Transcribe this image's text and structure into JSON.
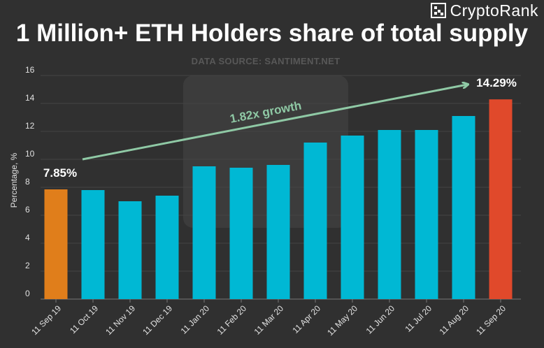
{
  "brand": {
    "name": "CryptoRank",
    "icon": "cryptorank-logo-icon"
  },
  "colors": {
    "background": "#303030",
    "bar_default": "#00b8d4",
    "bar_first": "#e07e1b",
    "bar_last": "#e0492b",
    "arrow": "#8fc9a5"
  },
  "chart_data": {
    "type": "bar",
    "title": "1 Million+ ETH Holders share of total supply",
    "subtitle": "DATA SOURCE: SANTIMENT.NET",
    "xlabel": "",
    "ylabel": "Percentage, %",
    "ylim": [
      0,
      16
    ],
    "yticks": [
      0,
      2,
      4,
      6,
      8,
      10,
      12,
      14,
      16
    ],
    "grid": true,
    "categories": [
      "11 Sep 19",
      "11 Oct 19",
      "11 Nov 19",
      "11 Dec 19",
      "11 Jan 20",
      "11 Feb 20",
      "11 Mar 20",
      "11 Apr 20",
      "11 May 20",
      "11 Jun 20",
      "11 Jul 20",
      "11 Aug 20",
      "11 Sep 20"
    ],
    "values": [
      7.85,
      7.8,
      7.0,
      7.4,
      9.5,
      9.4,
      9.6,
      11.2,
      11.7,
      12.1,
      12.1,
      13.1,
      14.29
    ],
    "data_labels": {
      "first": "7.85%",
      "last": "14.29%"
    },
    "annotation": {
      "text": "1.82x growth",
      "from_category": "11 Sep 19",
      "to_category": "11 Sep 20"
    }
  }
}
